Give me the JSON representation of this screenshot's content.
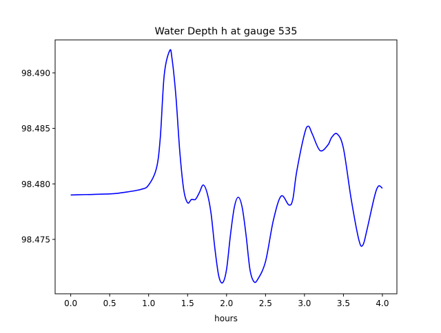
{
  "chart_data": {
    "type": "line",
    "title": "Water Depth h at gauge 535",
    "xlabel": "hours",
    "ylabel": "",
    "xlim": [
      -0.2,
      4.186
    ],
    "ylim": [
      98.4701,
      98.49297
    ],
    "grid": false,
    "xticks": [
      0.0,
      0.5,
      1.0,
      1.5,
      2.0,
      2.5,
      3.0,
      3.5,
      4.0
    ],
    "xtick_labels": [
      "0.0",
      "0.5",
      "1.0",
      "1.5",
      "2.0",
      "2.5",
      "3.0",
      "3.5",
      "4.0"
    ],
    "yticks": [
      98.475,
      98.48,
      98.485,
      98.49
    ],
    "ytick_labels": [
      "98.475",
      "98.480",
      "98.485",
      "98.490"
    ],
    "series": [
      {
        "name": "h",
        "color": "#0000ff",
        "x": [
          0,
          0.5,
          0.65,
          0.9,
          1.0,
          1.1,
          1.15,
          1.2,
          1.27,
          1.3,
          1.35,
          1.4,
          1.45,
          1.5,
          1.55,
          1.6,
          1.65,
          1.7,
          1.75,
          1.8,
          1.85,
          1.9,
          1.95,
          2.0,
          2.05,
          2.1,
          2.15,
          2.2,
          2.25,
          2.3,
          2.35,
          2.4,
          2.5,
          2.6,
          2.7,
          2.8,
          2.85,
          2.9,
          3.0,
          3.05,
          3.1,
          3.2,
          3.3,
          3.35,
          3.42,
          3.5,
          3.6,
          3.7,
          3.75,
          3.8,
          3.9,
          3.95,
          4.0
        ],
        "y": [
          98.479,
          98.4791,
          98.4792,
          98.4795,
          98.4799,
          98.4814,
          98.4842,
          98.4898,
          98.492,
          98.4913,
          98.4879,
          98.4829,
          98.4795,
          98.4783,
          98.4786,
          98.4786,
          98.4792,
          98.4799,
          98.4792,
          98.4774,
          98.4742,
          98.4717,
          98.4711,
          98.4723,
          98.4754,
          98.4779,
          98.4788,
          98.4779,
          98.4754,
          98.4723,
          98.4712,
          98.4714,
          98.473,
          98.4767,
          98.4789,
          98.4781,
          98.4786,
          98.4811,
          98.4845,
          98.4852,
          98.4845,
          98.483,
          98.4835,
          98.4842,
          98.4845,
          98.4832,
          98.4786,
          98.4749,
          98.4745,
          98.4758,
          98.4789,
          98.4798,
          98.4796
        ]
      }
    ]
  }
}
